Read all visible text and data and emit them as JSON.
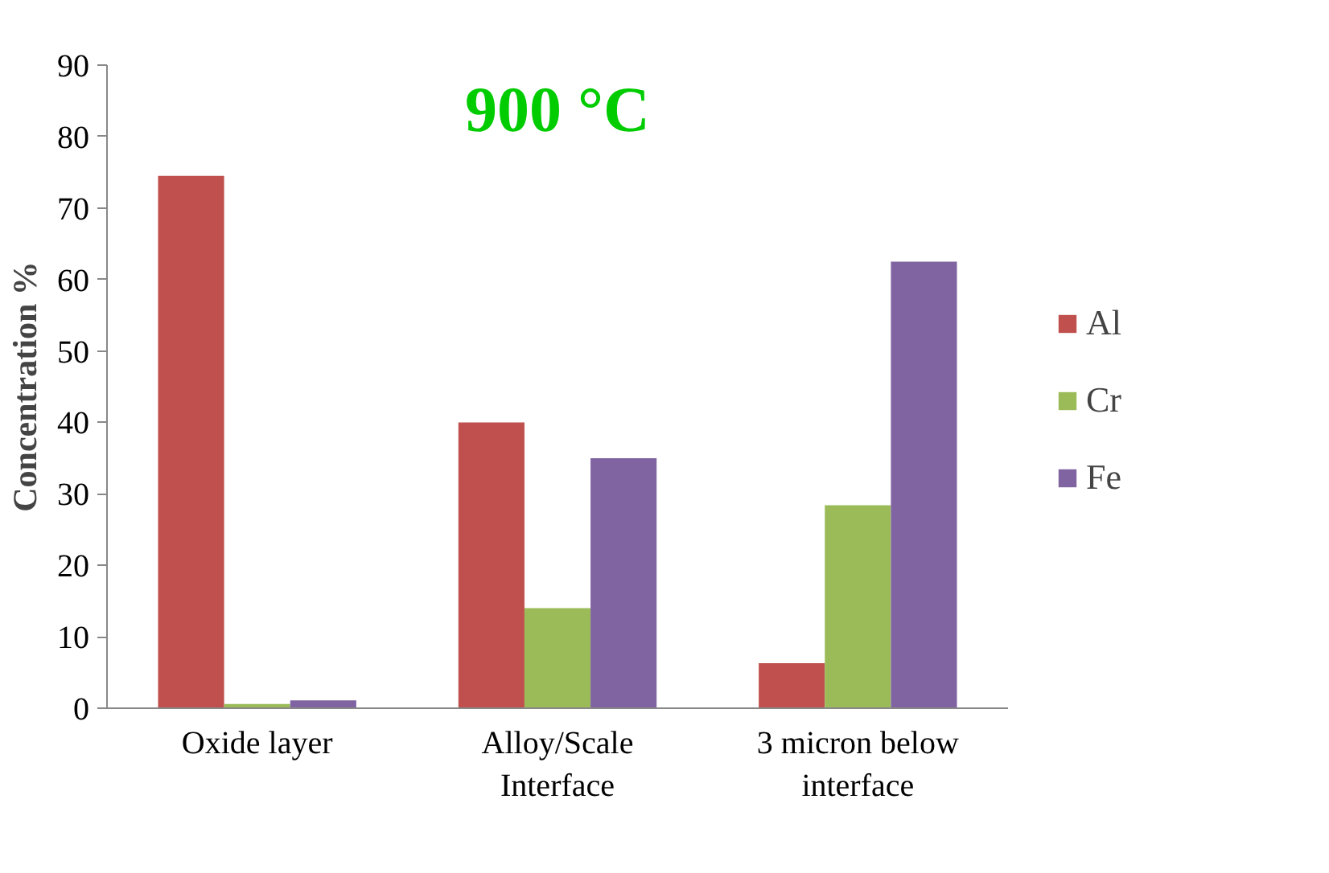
{
  "chart_data": {
    "type": "bar",
    "title": "900 °C",
    "ylabel": "Concentration %",
    "categories": [
      "Oxide layer",
      "Alloy/Scale Interface",
      "3 micron below interface"
    ],
    "series": [
      {
        "name": "Al",
        "color": "#c0504d",
        "values": [
          74.5,
          40,
          6.3
        ]
      },
      {
        "name": "Cr",
        "color": "#9bbb59",
        "values": [
          0.6,
          14,
          28.4
        ]
      },
      {
        "name": "Fe",
        "color": "#8064a2",
        "values": [
          1.1,
          35,
          62.5
        ]
      }
    ],
    "ylim": [
      0,
      90
    ],
    "yticks": [
      0,
      10,
      20,
      30,
      40,
      50,
      60,
      70,
      80,
      90
    ],
    "grid": false,
    "legend": "right"
  }
}
